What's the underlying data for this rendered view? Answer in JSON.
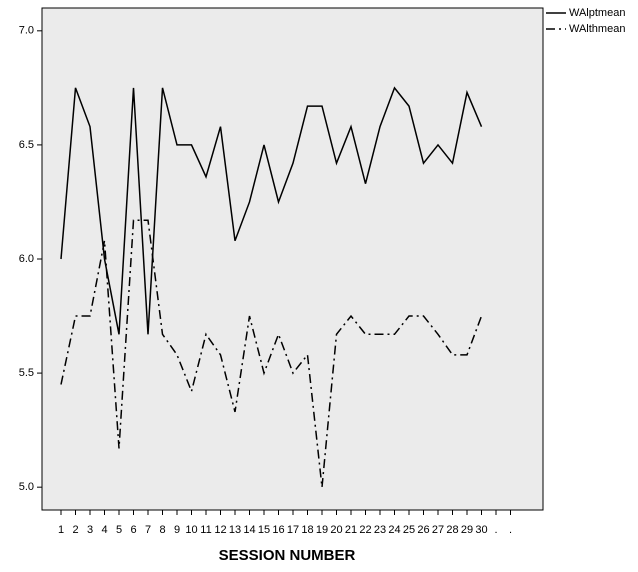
{
  "chart_data": {
    "type": "line",
    "x_label": "SESSION NUMBER",
    "categories": [
      "1",
      "2",
      "3",
      "4",
      "5",
      "6",
      "7",
      "8",
      "9",
      "10",
      "11",
      "12",
      "13",
      "14",
      "15",
      "16",
      "17",
      "18",
      "19",
      "20",
      "21",
      "22",
      "23",
      "24",
      "25",
      "26",
      "27",
      "28",
      "29",
      "30",
      ".",
      "."
    ],
    "series": [
      {
        "name": "WAlptmean",
        "color": "#000000",
        "linestyle": "solid",
        "values": [
          6.0,
          6.75,
          6.58,
          6.0,
          5.67,
          6.75,
          5.67,
          6.75,
          6.5,
          6.5,
          6.36,
          6.58,
          6.08,
          6.25,
          6.5,
          6.25,
          6.42,
          6.67,
          6.67,
          6.42,
          6.58,
          6.33,
          6.58,
          6.75,
          6.67,
          6.42,
          6.5,
          6.42,
          6.73,
          6.58,
          null,
          null
        ]
      },
      {
        "name": "WAlthmean",
        "color": "#000000",
        "linestyle": "dashdot",
        "values": [
          5.45,
          5.75,
          5.75,
          6.08,
          5.17,
          6.17,
          6.17,
          5.67,
          5.58,
          5.42,
          5.67,
          5.58,
          5.33,
          5.75,
          5.5,
          5.67,
          5.5,
          5.58,
          5.0,
          5.67,
          5.75,
          5.67,
          5.67,
          5.67,
          5.75,
          5.75,
          5.67,
          5.58,
          5.58,
          5.75,
          null,
          null
        ]
      }
    ],
    "ylim": [
      4.9,
      7.1
    ],
    "yticks": [
      {
        "value": 5,
        "label": "5.0"
      },
      {
        "value": 5.5,
        "label": "5.5"
      },
      {
        "value": 6,
        "label": "6.0"
      },
      {
        "value": 6.5,
        "label": "6.5"
      },
      {
        "value": 7,
        "label": "7.0"
      }
    ],
    "legend": "top-right-outside",
    "background": "#ebebeb"
  }
}
